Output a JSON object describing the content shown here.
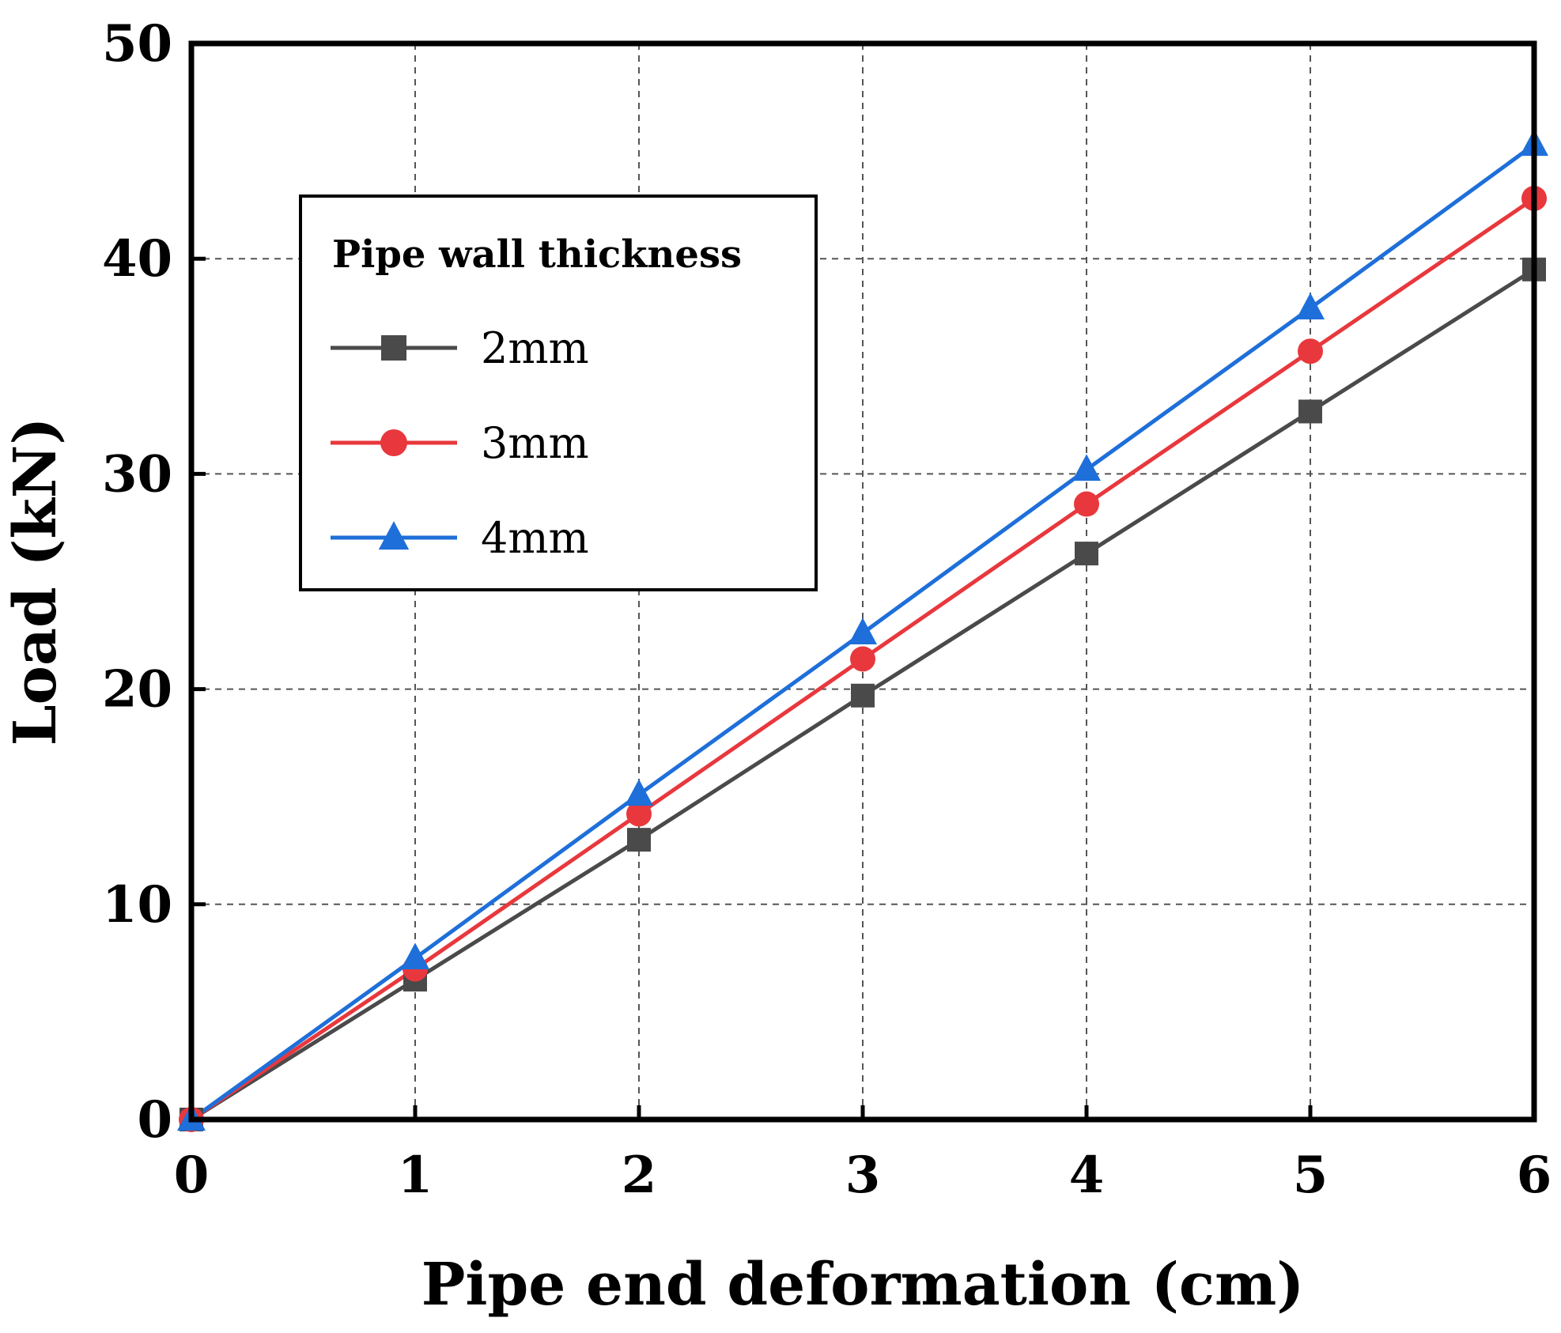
{
  "chart_data": {
    "type": "line",
    "title": "",
    "xlabel": "Pipe end deformation (cm)",
    "ylabel": "Load (kN)",
    "xlim": [
      0,
      6
    ],
    "ylim": [
      0,
      50
    ],
    "xticks": [
      "0",
      "1",
      "2",
      "3",
      "4",
      "5",
      "6"
    ],
    "yticks": [
      "0",
      "10",
      "20",
      "30",
      "40",
      "50"
    ],
    "grid": true,
    "legend": {
      "title": "Pipe wall thickness",
      "placement": "upper-left"
    },
    "x": [
      0,
      1,
      2,
      3,
      4,
      5,
      6
    ],
    "series": [
      {
        "name": "2mm",
        "marker": "square",
        "color": "#4a4a4a",
        "values": [
          0,
          6.5,
          13.0,
          19.7,
          26.3,
          32.9,
          39.5
        ]
      },
      {
        "name": "3mm",
        "marker": "circle",
        "color": "#e8383d",
        "values": [
          0,
          7.0,
          14.2,
          21.4,
          28.6,
          35.7,
          42.8
        ]
      },
      {
        "name": "4mm",
        "marker": "triangle",
        "color": "#1e6fd9",
        "values": [
          0,
          7.5,
          15.1,
          22.6,
          30.2,
          37.7,
          45.3
        ]
      }
    ]
  }
}
